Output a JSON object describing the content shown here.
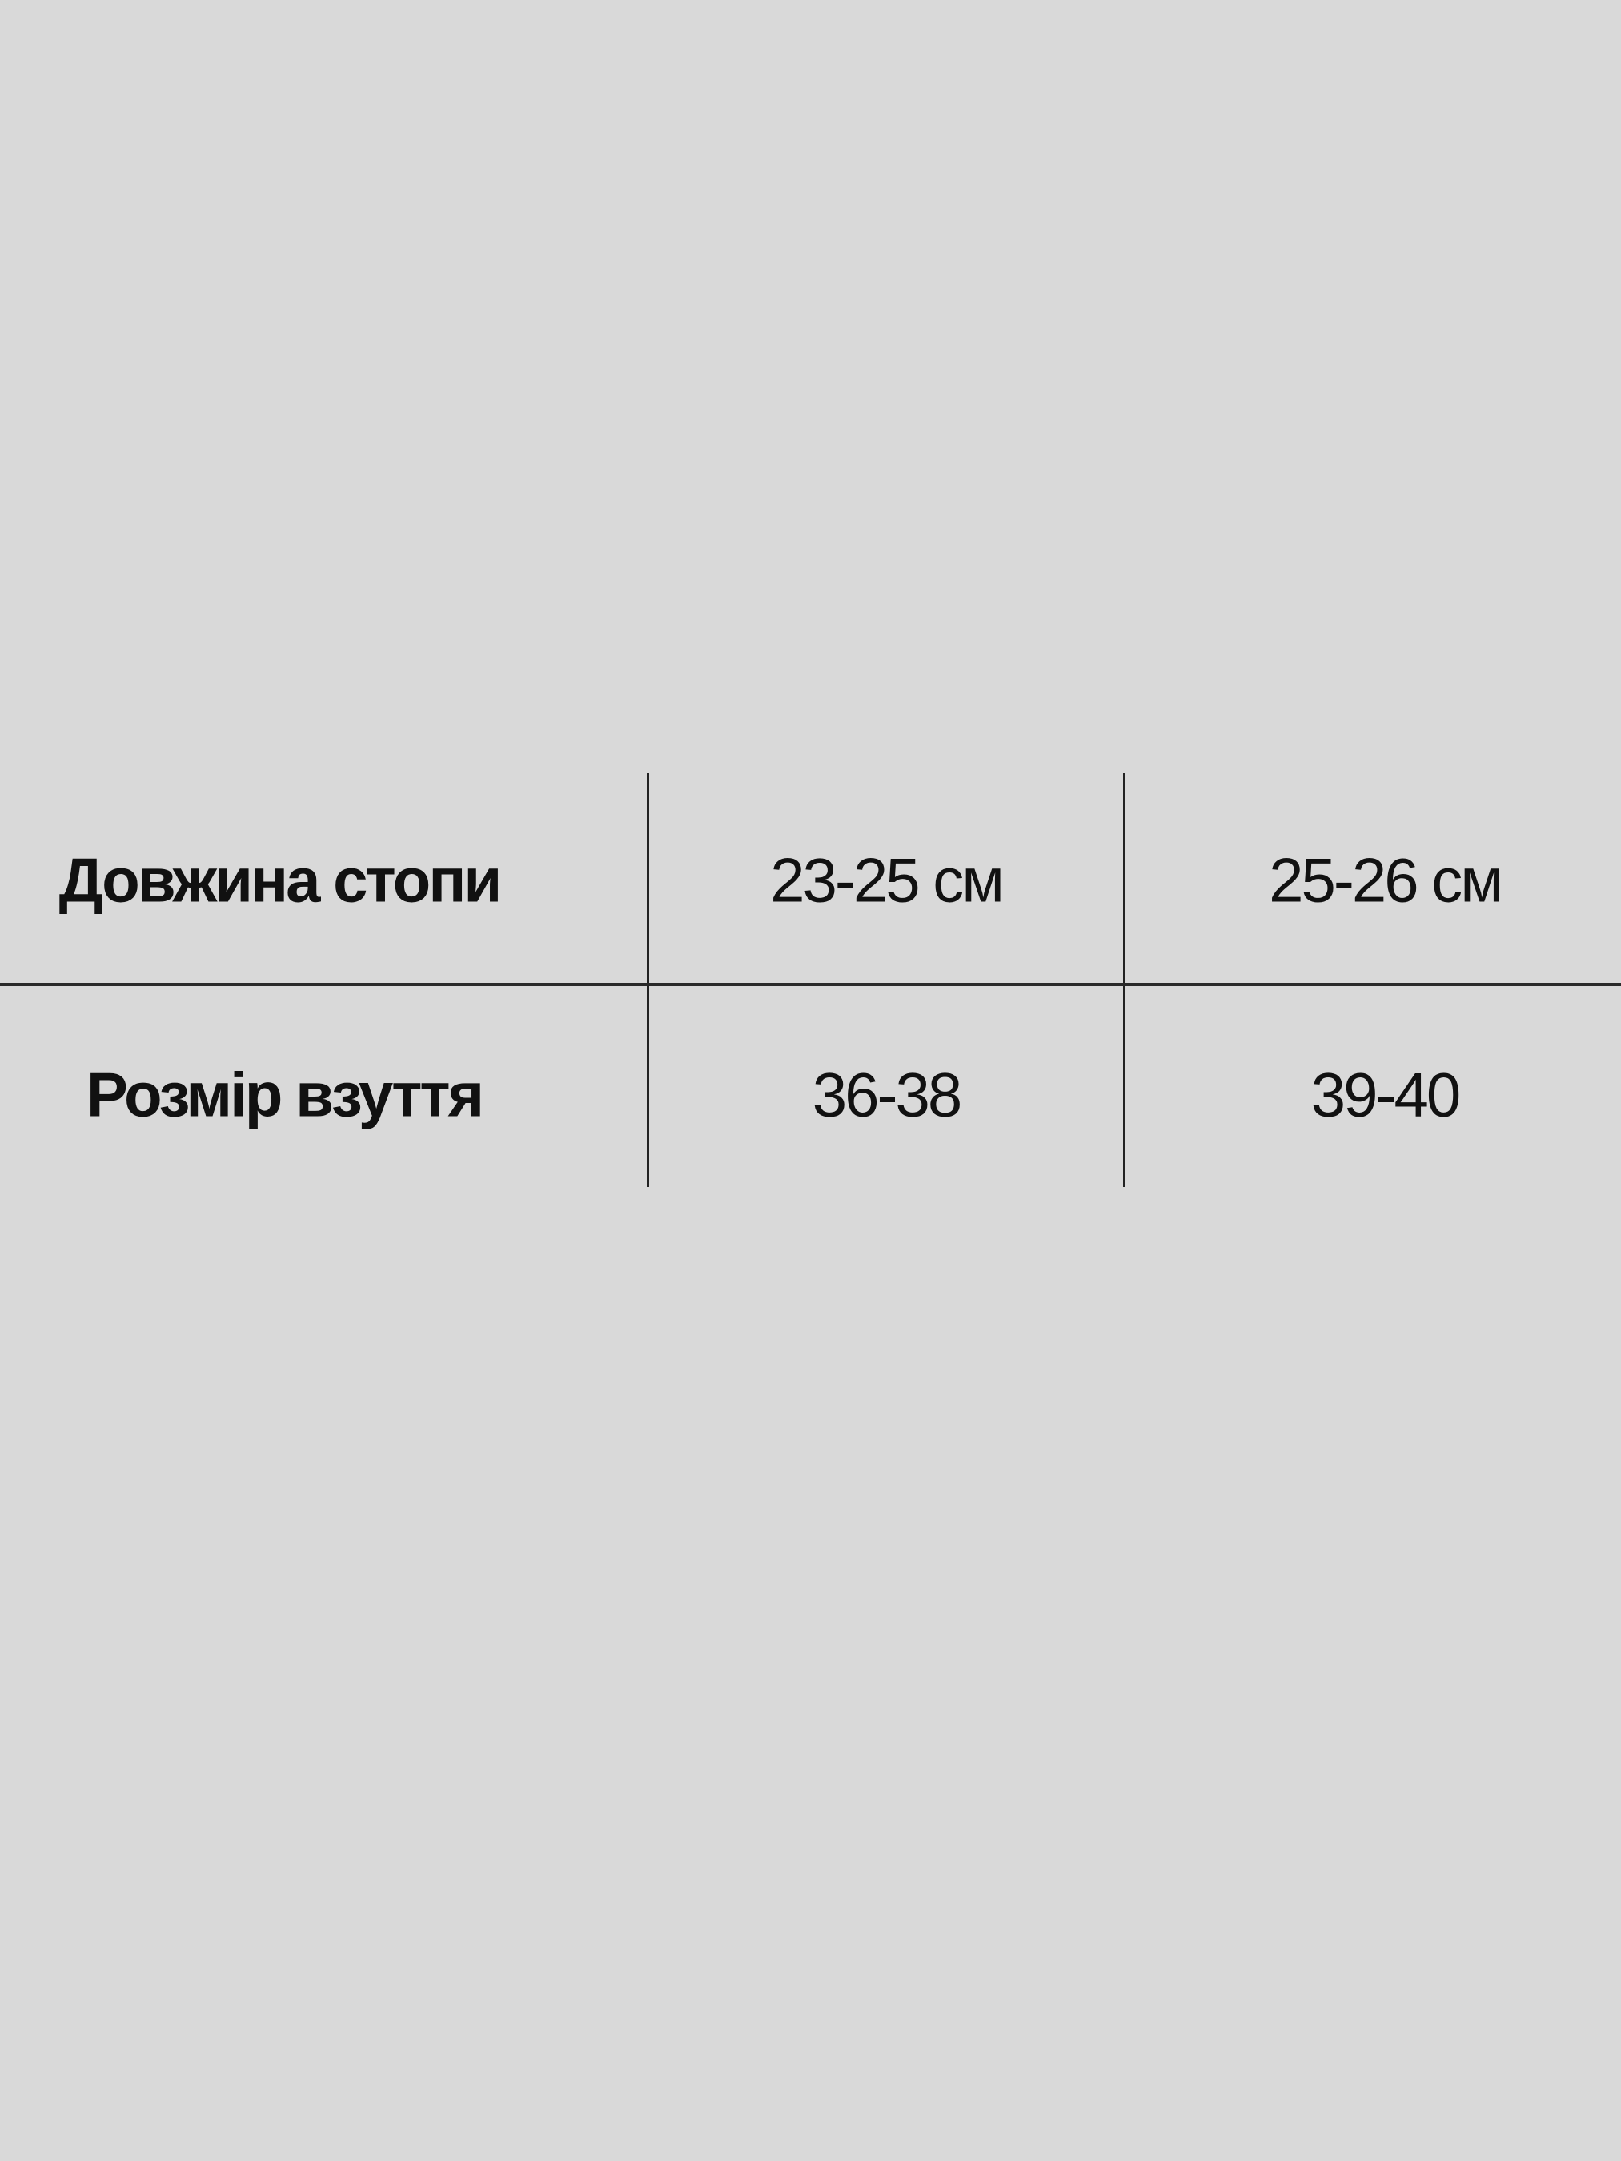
{
  "size_table": {
    "rows": [
      {
        "label": "Довжина стопи",
        "values": [
          "23-25 см",
          "25-26 см"
        ]
      },
      {
        "label": "Розмір взуття",
        "values": [
          "36-38",
          "39-40"
        ]
      }
    ]
  },
  "colors": {
    "background": "#d9d9d9",
    "text": "#111111",
    "lines": "#222222"
  }
}
